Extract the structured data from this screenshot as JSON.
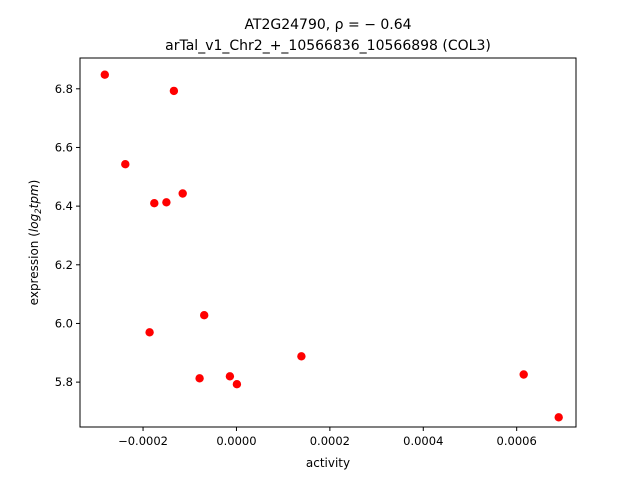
{
  "chart_data": {
    "type": "scatter",
    "title_line1": "AT2G24790, ρ = − 0.64",
    "title_line2": "arTal_v1_Chr2_+_10566836_10566898 (COL3)",
    "xlabel": "activity",
    "ylabel_prefix": "expression (",
    "ylabel_log": "log",
    "ylabel_sub": "2",
    "ylabel_unit": "tpm",
    "ylabel_suffix": ")",
    "xlim": [
      -0.000335,
      0.000727
    ],
    "ylim": [
      5.647,
      6.905
    ],
    "x_ticks": [
      -0.0002,
      0.0,
      0.0002,
      0.0004,
      0.0006
    ],
    "x_tick_labels": [
      "−0.0002",
      "0.0000",
      "0.0002",
      "0.0004",
      "0.0006"
    ],
    "y_ticks": [
      5.8,
      6.0,
      6.2,
      6.4,
      6.6,
      6.8
    ],
    "y_tick_labels": [
      "5.8",
      "6.0",
      "6.2",
      "6.4",
      "6.6",
      "6.8"
    ],
    "grid": false,
    "marker_color": "#ff0000",
    "points": [
      {
        "x": -0.000282,
        "y": 6.848
      },
      {
        "x": -0.000134,
        "y": 6.793
      },
      {
        "x": -0.000238,
        "y": 6.543
      },
      {
        "x": -0.000115,
        "y": 6.443
      },
      {
        "x": -0.000176,
        "y": 6.41
      },
      {
        "x": -0.00015,
        "y": 6.413
      },
      {
        "x": -0.000186,
        "y": 5.97
      },
      {
        "x": -6.9e-05,
        "y": 6.028
      },
      {
        "x": -7.9e-05,
        "y": 5.813
      },
      {
        "x": -1.4e-05,
        "y": 5.82
      },
      {
        "x": 1e-06,
        "y": 5.793
      },
      {
        "x": 0.000139,
        "y": 5.888
      },
      {
        "x": 0.000615,
        "y": 5.826
      },
      {
        "x": 0.00069,
        "y": 5.68
      }
    ]
  }
}
